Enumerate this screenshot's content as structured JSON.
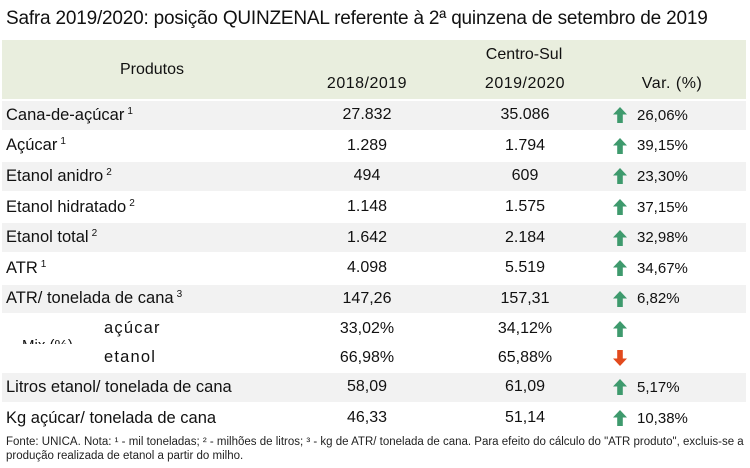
{
  "title": "Safra 2019/2020: posição QUINZENAL referente à 2ª quinzena de setembro de 2019",
  "header": {
    "products": "Produtos",
    "region": "Centro-Sul",
    "col1": "2018/2019",
    "col2": "2019/2020",
    "col3": "Var. (%)"
  },
  "colors": {
    "up": "#3e9a6d",
    "down": "#e24a1d",
    "header_bg": "#e9eede",
    "stripe_bg": "#f2f2f2"
  },
  "rows": [
    {
      "label": "Cana-de-açúcar",
      "note": "1",
      "v1": "27.832",
      "v2": "35.086",
      "var": "26,06%",
      "dir": "up"
    },
    {
      "label": "Açúcar",
      "note": "1",
      "v1": "1.289",
      "v2": "1.794",
      "var": "39,15%",
      "dir": "up"
    },
    {
      "label": "Etanol anidro",
      "note": "2",
      "v1": "494",
      "v2": "609",
      "var": "23,30%",
      "dir": "up"
    },
    {
      "label": "Etanol hidratado",
      "note": "2",
      "v1": "1.148",
      "v2": "1.575",
      "var": "37,15%",
      "dir": "up"
    },
    {
      "label": "Etanol total",
      "note": "2",
      "v1": "1.642",
      "v2": "2.184",
      "var": "32,98%",
      "dir": "up"
    },
    {
      "label": "ATR",
      "note": "1",
      "v1": "4.098",
      "v2": "5.519",
      "var": "34,67%",
      "dir": "up"
    },
    {
      "label": "ATR/ tonelada de cana",
      "note": "3",
      "v1": "147,26",
      "v2": "157,31",
      "var": "6,82%",
      "dir": "up"
    }
  ],
  "mix": {
    "label": "Mix (%)",
    "rows": [
      {
        "label": "açúcar",
        "v1": "33,02%",
        "v2": "34,12%",
        "dir": "up"
      },
      {
        "label": "etanol",
        "v1": "66,98%",
        "v2": "65,88%",
        "dir": "down"
      }
    ]
  },
  "tail_rows": [
    {
      "label": "Litros etanol/ tonelada de cana",
      "v1": "58,09",
      "v2": "61,09",
      "var": "5,17%",
      "dir": "up"
    },
    {
      "label": "Kg açúcar/ tonelada de cana",
      "v1": "46,33",
      "v2": "51,14",
      "var": "10,38%",
      "dir": "up"
    }
  ],
  "footnote": "Fonte: UNICA. Nota: ¹ - mil toneladas; ² - milhões de litros; ³ - kg de ATR/ tonelada de cana. Para efeito do cálculo do \"ATR produto\", excluis-se a produção realizada de etanol a partir do milho."
}
